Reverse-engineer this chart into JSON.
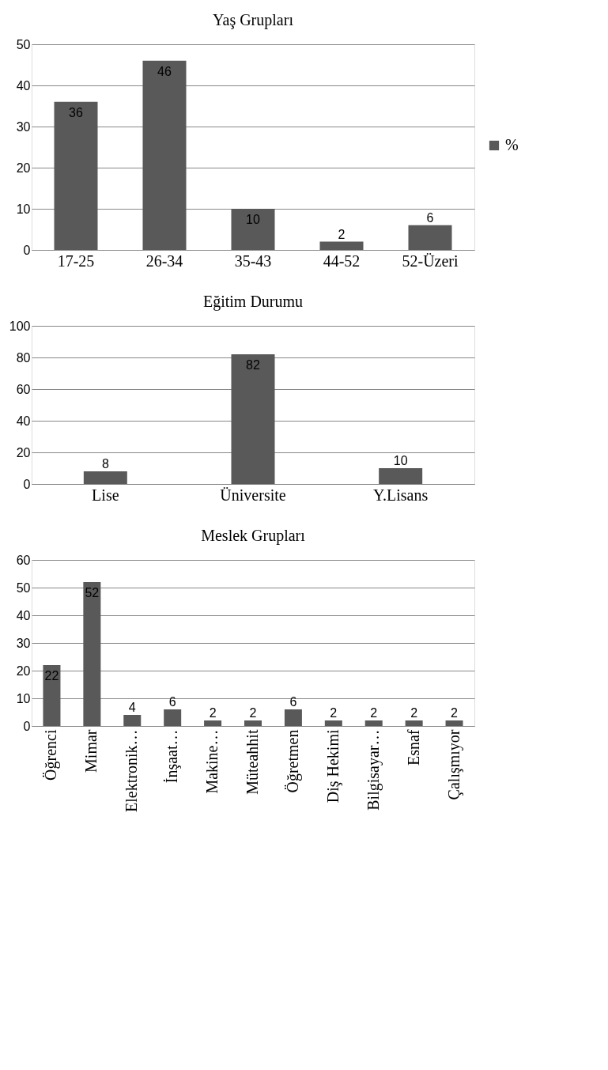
{
  "chart_data": [
    {
      "type": "bar",
      "title": "Yaş Grupları",
      "categories": [
        "17-25",
        "26-34",
        "35-43",
        "44-52",
        "52-Üzeri"
      ],
      "series": [
        {
          "name": "%",
          "color": "#595959",
          "values": [
            36,
            46,
            10,
            2,
            6
          ]
        }
      ],
      "ylim": [
        0,
        50
      ],
      "yticks": [
        0,
        10,
        20,
        30,
        40,
        50
      ],
      "grid": "y",
      "legend": "right",
      "data_labels": true
    },
    {
      "type": "bar",
      "title": "Eğitim Durumu",
      "categories": [
        "Lise",
        "Üniversite",
        "Y.Lisans"
      ],
      "series": [
        {
          "name": "%",
          "color": "#595959",
          "values": [
            8,
            82,
            10
          ]
        }
      ],
      "ylim": [
        0,
        100
      ],
      "yticks": [
        0,
        20,
        40,
        60,
        80,
        100
      ],
      "grid": "y",
      "legend": "right",
      "data_labels": true
    },
    {
      "type": "bar",
      "title": "Meslek Grupları",
      "categories": [
        "Öğrenci",
        "Mimar",
        "Elektronik…",
        "İnşaat…",
        "Makine…",
        "Müteahhit",
        "Öğretmen",
        "Diş Hekimi",
        "Bilgisayar…",
        "Esnaf",
        "Çalışmıyor"
      ],
      "series": [
        {
          "name": "%",
          "color": "#595959",
          "values": [
            22,
            52,
            4,
            6,
            2,
            2,
            6,
            2,
            2,
            2,
            2
          ]
        }
      ],
      "ylim": [
        0,
        60
      ],
      "yticks": [
        0,
        10,
        20,
        30,
        40,
        50,
        60
      ],
      "grid": "y",
      "legend": "right",
      "data_labels": true
    }
  ]
}
